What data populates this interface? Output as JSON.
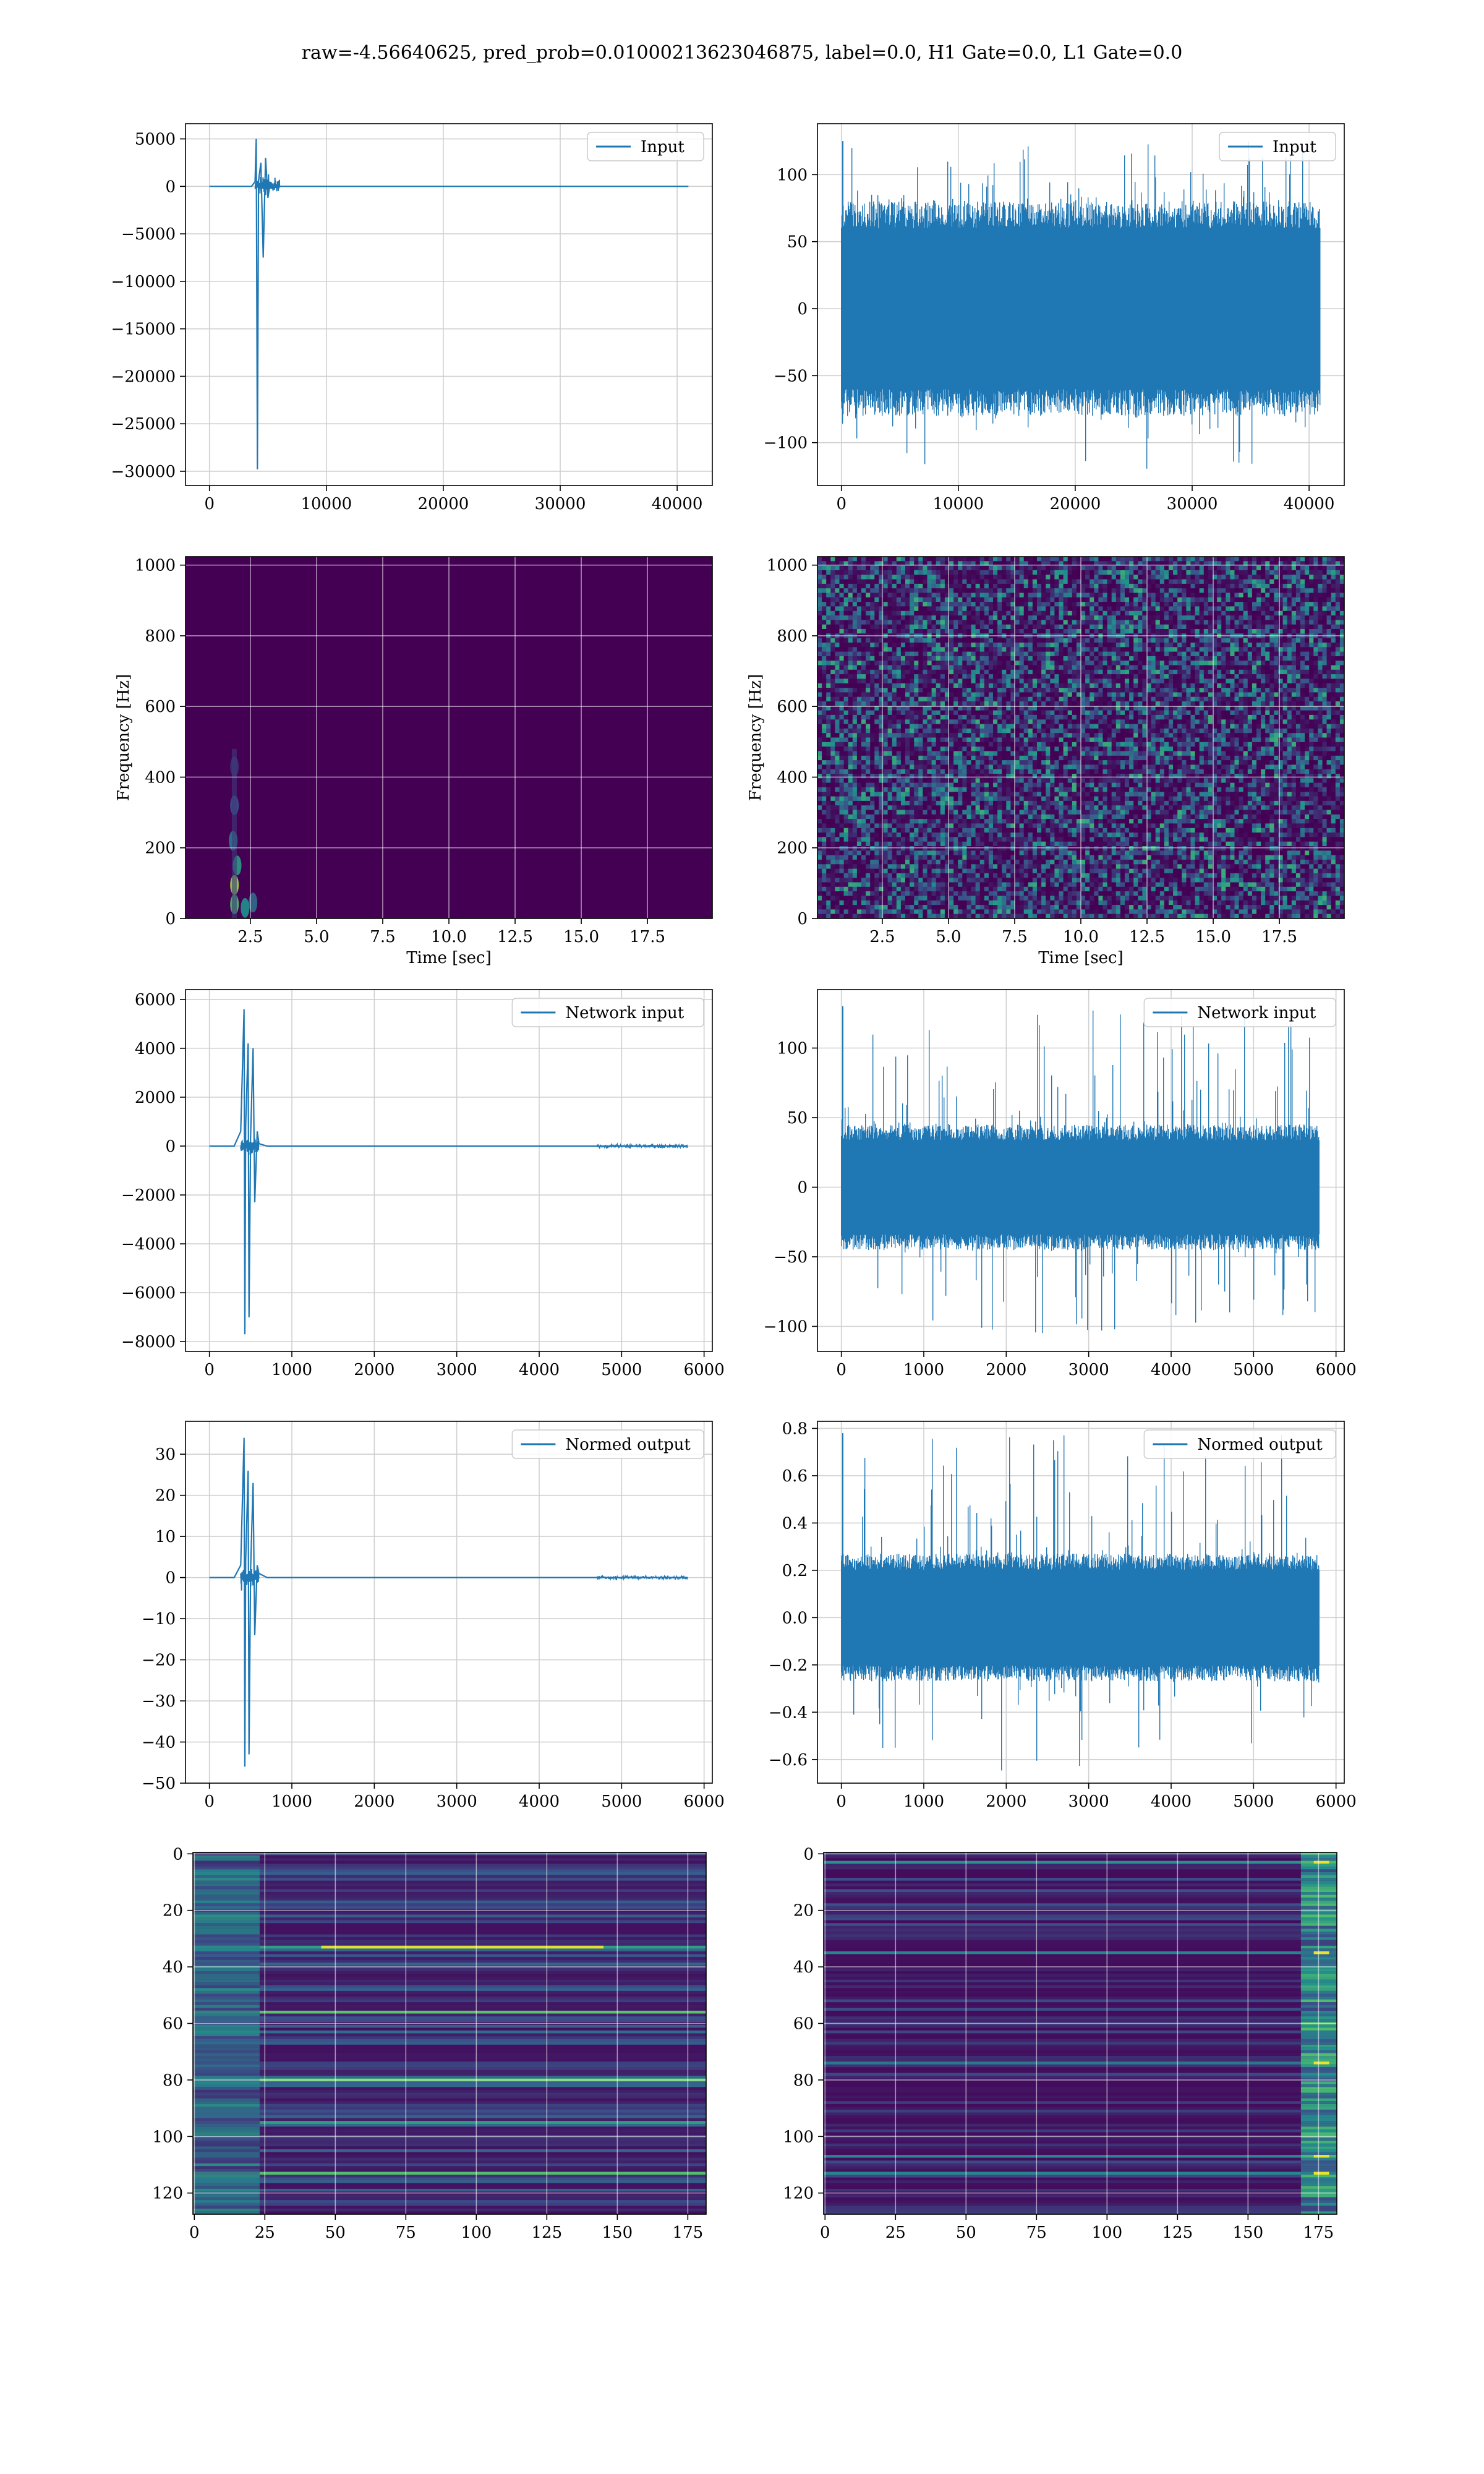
{
  "figure": {
    "title": "raw=-4.56640625, pred_prob=0.01000213623046875, label=0.0, H1 Gate=0.0, L1 Gate=0.0"
  },
  "colors": {
    "line": "#1f77b4",
    "grid": "#b0b0b0",
    "viridis_low": "#440154",
    "viridis_mid": "#21918c",
    "viridis_high": "#fde725"
  },
  "chart_data": [
    {
      "id": "input-h1",
      "type": "line",
      "legend": "Input",
      "legend_loc": "upper-right",
      "grid": true,
      "xlim": [
        -2048,
        43008
      ],
      "ylim": [
        -31500,
        6600
      ],
      "xticks": [
        0,
        10000,
        20000,
        30000,
        40000
      ],
      "xtick_labels": [
        "0",
        "10000",
        "20000",
        "30000",
        "40000"
      ],
      "yticks": [
        5000,
        0,
        -5000,
        -10000,
        -15000,
        -20000,
        -25000,
        -30000
      ],
      "ytick_labels": [
        "5000",
        "0",
        "−5000",
        "−10000",
        "−15000",
        "−20000",
        "−25000",
        "−30000"
      ],
      "x": [
        0,
        3600,
        3900,
        4000,
        4100,
        4200,
        4400,
        4600,
        4800,
        5000,
        5200,
        5400,
        6000,
        10000,
        20000,
        30000,
        40960
      ],
      "y": [
        0,
        0,
        500,
        5000,
        -29800,
        600,
        2500,
        -7500,
        3000,
        -1200,
        400,
        150,
        0,
        0,
        0,
        0,
        0
      ]
    },
    {
      "id": "input-l1",
      "type": "line",
      "legend": "Input",
      "legend_loc": "upper-right",
      "grid": true,
      "xlim": [
        -2048,
        43008
      ],
      "ylim": [
        -132,
        138
      ],
      "xticks": [
        0,
        10000,
        20000,
        30000,
        40000
      ],
      "xtick_labels": [
        "0",
        "10000",
        "20000",
        "30000",
        "40000"
      ],
      "yticks": [
        100,
        50,
        0,
        -50,
        -100
      ],
      "ytick_labels": [
        "100",
        "50",
        "0",
        "−50",
        "−100"
      ],
      "noise": {
        "n": 40960,
        "core_amplitude": 80,
        "max": 125,
        "min": -120
      }
    },
    {
      "id": "spectrogram-h1",
      "type": "heatmap",
      "grid": true,
      "xlabel": "Time [sec]",
      "ylabel": "Frequency [Hz]",
      "xlim": [
        0.05,
        19.95
      ],
      "ylim": [
        0,
        1024
      ],
      "xticks": [
        2.5,
        5.0,
        7.5,
        10.0,
        12.5,
        15.0,
        17.5
      ],
      "xtick_labels": [
        "2.5",
        "5.0",
        "7.5",
        "10.0",
        "12.5",
        "15.0",
        "17.5"
      ],
      "yticks": [
        0,
        200,
        400,
        600,
        800,
        1000
      ],
      "ytick_labels": [
        "0",
        "200",
        "400",
        "600",
        "800",
        "1000"
      ],
      "pattern": "quiet-with-glitch",
      "glitch_time": [
        1.7,
        2.8
      ],
      "glitch_freq": [
        0,
        480
      ]
    },
    {
      "id": "spectrogram-l1",
      "type": "heatmap",
      "grid": true,
      "xlabel": "Time [sec]",
      "ylabel": "Frequency [Hz]",
      "xlim": [
        0.05,
        19.95
      ],
      "ylim": [
        0,
        1024
      ],
      "xticks": [
        2.5,
        5.0,
        7.5,
        10.0,
        12.5,
        15.0,
        17.5
      ],
      "xtick_labels": [
        "2.5",
        "5.0",
        "7.5",
        "10.0",
        "12.5",
        "15.0",
        "17.5"
      ],
      "yticks": [
        0,
        200,
        400,
        600,
        800,
        1000
      ],
      "ytick_labels": [
        "0",
        "200",
        "400",
        "600",
        "800",
        "1000"
      ],
      "pattern": "noise"
    },
    {
      "id": "network-input-h1",
      "type": "line",
      "legend": "Network input",
      "legend_loc": "upper-right",
      "grid": true,
      "xlim": [
        -290,
        6100
      ],
      "ylim": [
        -8400,
        6400
      ],
      "xticks": [
        0,
        1000,
        2000,
        3000,
        4000,
        5000,
        6000
      ],
      "xtick_labels": [
        "0",
        "1000",
        "2000",
        "3000",
        "4000",
        "5000",
        "6000"
      ],
      "yticks": [
        6000,
        4000,
        2000,
        0,
        -2000,
        -4000,
        -6000,
        -8000
      ],
      "ytick_labels": [
        "6000",
        "4000",
        "2000",
        "0",
        "−2000",
        "−4000",
        "−6000",
        "−8000"
      ],
      "x": [
        0,
        300,
        380,
        420,
        430,
        440,
        470,
        480,
        500,
        530,
        550,
        580,
        600,
        700,
        1000,
        4700,
        5800
      ],
      "y": [
        0,
        0,
        600,
        5600,
        -7700,
        800,
        4200,
        -7000,
        400,
        4000,
        -2300,
        600,
        100,
        0,
        0,
        0,
        0
      ]
    },
    {
      "id": "network-input-l1",
      "type": "line",
      "legend": "Network input",
      "legend_loc": "upper-right",
      "grid": true,
      "xlim": [
        -290,
        6100
      ],
      "ylim": [
        -118,
        142
      ],
      "xticks": [
        0,
        1000,
        2000,
        3000,
        4000,
        5000,
        6000
      ],
      "xtick_labels": [
        "0",
        "1000",
        "2000",
        "3000",
        "4000",
        "5000",
        "6000"
      ],
      "yticks": [
        100,
        50,
        0,
        -50,
        -100
      ],
      "ytick_labels": [
        "100",
        "50",
        "0",
        "−50",
        "−100"
      ],
      "noise": {
        "n": 5800,
        "core_amplitude": 45,
        "max": 130,
        "min": -105
      }
    },
    {
      "id": "normed-output-h1",
      "type": "line",
      "legend": "Normed output",
      "legend_loc": "upper-right",
      "grid": true,
      "xlim": [
        -290,
        6100
      ],
      "ylim": [
        -50,
        38
      ],
      "xticks": [
        0,
        1000,
        2000,
        3000,
        4000,
        5000,
        6000
      ],
      "xtick_labels": [
        "0",
        "1000",
        "2000",
        "3000",
        "4000",
        "5000",
        "6000"
      ],
      "yticks": [
        30,
        20,
        10,
        0,
        -10,
        -20,
        -30,
        -40,
        -50
      ],
      "ytick_labels": [
        "30",
        "20",
        "10",
        "0",
        "−10",
        "−20",
        "−30",
        "−40",
        "−50"
      ],
      "x": [
        0,
        300,
        380,
        420,
        430,
        440,
        470,
        480,
        500,
        530,
        550,
        580,
        600,
        700,
        1000,
        4700,
        5800
      ],
      "y": [
        0,
        0,
        3,
        34,
        -46,
        4,
        26,
        -43,
        2,
        23,
        -14,
        3,
        1,
        0,
        0,
        0,
        0
      ]
    },
    {
      "id": "normed-output-l1",
      "type": "line",
      "legend": "Normed output",
      "legend_loc": "upper-right",
      "grid": true,
      "xlim": [
        -290,
        6100
      ],
      "ylim": [
        -0.7,
        0.83
      ],
      "xticks": [
        0,
        1000,
        2000,
        3000,
        4000,
        5000,
        6000
      ],
      "xtick_labels": [
        "0",
        "1000",
        "2000",
        "3000",
        "4000",
        "5000",
        "6000"
      ],
      "yticks": [
        0.8,
        0.6,
        0.4,
        0.2,
        0.0,
        -0.2,
        -0.4,
        -0.6
      ],
      "ytick_labels": [
        "0.8",
        "0.6",
        "0.4",
        "0.2",
        "0.0",
        "−0.2",
        "−0.4",
        "−0.6"
      ],
      "noise": {
        "n": 5800,
        "core_amplitude": 0.27,
        "max": 0.78,
        "min": -0.65
      }
    },
    {
      "id": "features-h1",
      "type": "heatmap",
      "grid": true,
      "xlim": [
        -0.5,
        181.5
      ],
      "ylim": [
        127.5,
        -0.5
      ],
      "xticks": [
        0,
        25,
        50,
        75,
        100,
        125,
        150,
        175
      ],
      "xtick_labels": [
        "0",
        "25",
        "50",
        "75",
        "100",
        "125",
        "150",
        "175"
      ],
      "yticks": [
        0,
        20,
        40,
        60,
        80,
        100,
        120
      ],
      "ytick_labels": [
        "0",
        "20",
        "40",
        "60",
        "80",
        "100",
        "120"
      ],
      "pattern": "row-bands",
      "bright_rows": [
        33,
        56,
        80,
        95,
        113
      ],
      "hot_row": 33
    },
    {
      "id": "features-l1",
      "type": "heatmap",
      "grid": true,
      "xlim": [
        -0.5,
        181.5
      ],
      "ylim": [
        127.5,
        -0.5
      ],
      "xticks": [
        0,
        25,
        50,
        75,
        100,
        125,
        150,
        175
      ],
      "xtick_labels": [
        "0",
        "25",
        "50",
        "75",
        "100",
        "125",
        "150",
        "175"
      ],
      "yticks": [
        0,
        20,
        40,
        60,
        80,
        100,
        120
      ],
      "ytick_labels": [
        "0",
        "20",
        "40",
        "60",
        "80",
        "100",
        "120"
      ],
      "pattern": "row-bands-right-edge",
      "bright_rows": [
        3,
        35,
        74,
        107,
        113
      ]
    }
  ]
}
